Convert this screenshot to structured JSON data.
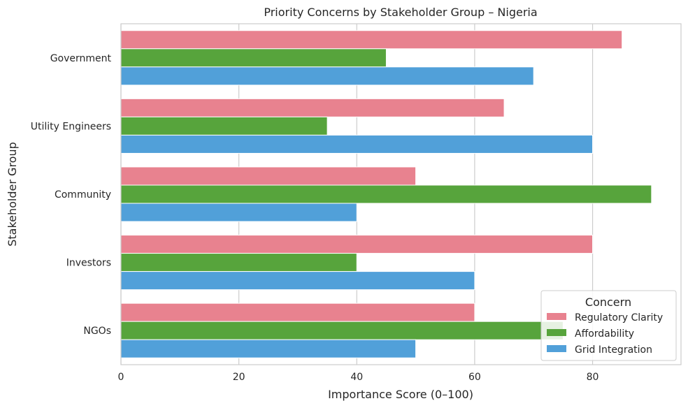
{
  "chart_data": {
    "type": "bar",
    "orientation": "horizontal",
    "title": "Priority Concerns by Stakeholder Group – Nigeria",
    "xlabel": "Importance Score (0–100)",
    "ylabel": "Stakeholder Group",
    "xlim": [
      0,
      95
    ],
    "xticks": [
      0,
      20,
      40,
      60,
      80
    ],
    "grid": true,
    "legend_title": "Concern",
    "legend_position": "lower-right",
    "categories": [
      "Government",
      "Utility Engineers",
      "Community",
      "Investors",
      "NGOs"
    ],
    "series": [
      {
        "name": "Regulatory Clarity",
        "color": "#e8828f",
        "values": [
          85,
          65,
          50,
          80,
          60
        ]
      },
      {
        "name": "Affordability",
        "color": "#57a43c",
        "values": [
          45,
          35,
          90,
          40,
          75
        ]
      },
      {
        "name": "Grid Integration",
        "color": "#51a0d9",
        "values": [
          70,
          80,
          40,
          60,
          50
        ]
      }
    ]
  }
}
